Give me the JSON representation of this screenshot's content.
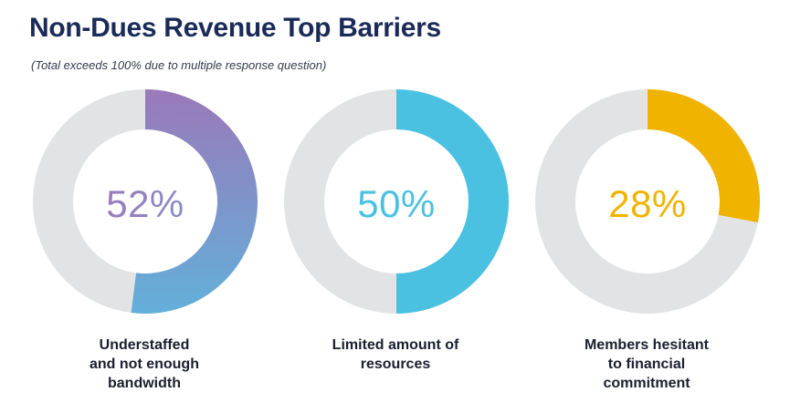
{
  "title": "Non-Dues Revenue Top Barriers",
  "subtitle": "(Total exceeds 100% due to multiple response question)",
  "colors": {
    "track": "#e2e3e5",
    "purple_start": "#9a79b9",
    "purple_end": "#62b0da",
    "blue": "#4bc1e2",
    "gold": "#f0b400",
    "title": "#1b2b58"
  },
  "chart_data": {
    "type": "pie",
    "title": "Non-Dues Revenue Top Barriers",
    "subtitle": "(Total exceeds 100% due to multiple response question)",
    "series": [
      {
        "name": "Understaffed and not enough bandwidth",
        "label_lines": [
          "Understaffed",
          "and not enough",
          "bandwidth"
        ],
        "value": 52,
        "display": "52%",
        "color": "#9a79b9",
        "color_end": "#62b0da"
      },
      {
        "name": "Limited amount of resources",
        "label_lines": [
          "Limited amount of",
          "resources"
        ],
        "value": 50,
        "display": "50%",
        "color": "#4bc1e2"
      },
      {
        "name": "Members hesitant to financial commitment",
        "label_lines": [
          "Members hesitant",
          "to financial",
          "commitment"
        ],
        "value": 28,
        "display": "28%",
        "color": "#f0b400"
      }
    ]
  }
}
